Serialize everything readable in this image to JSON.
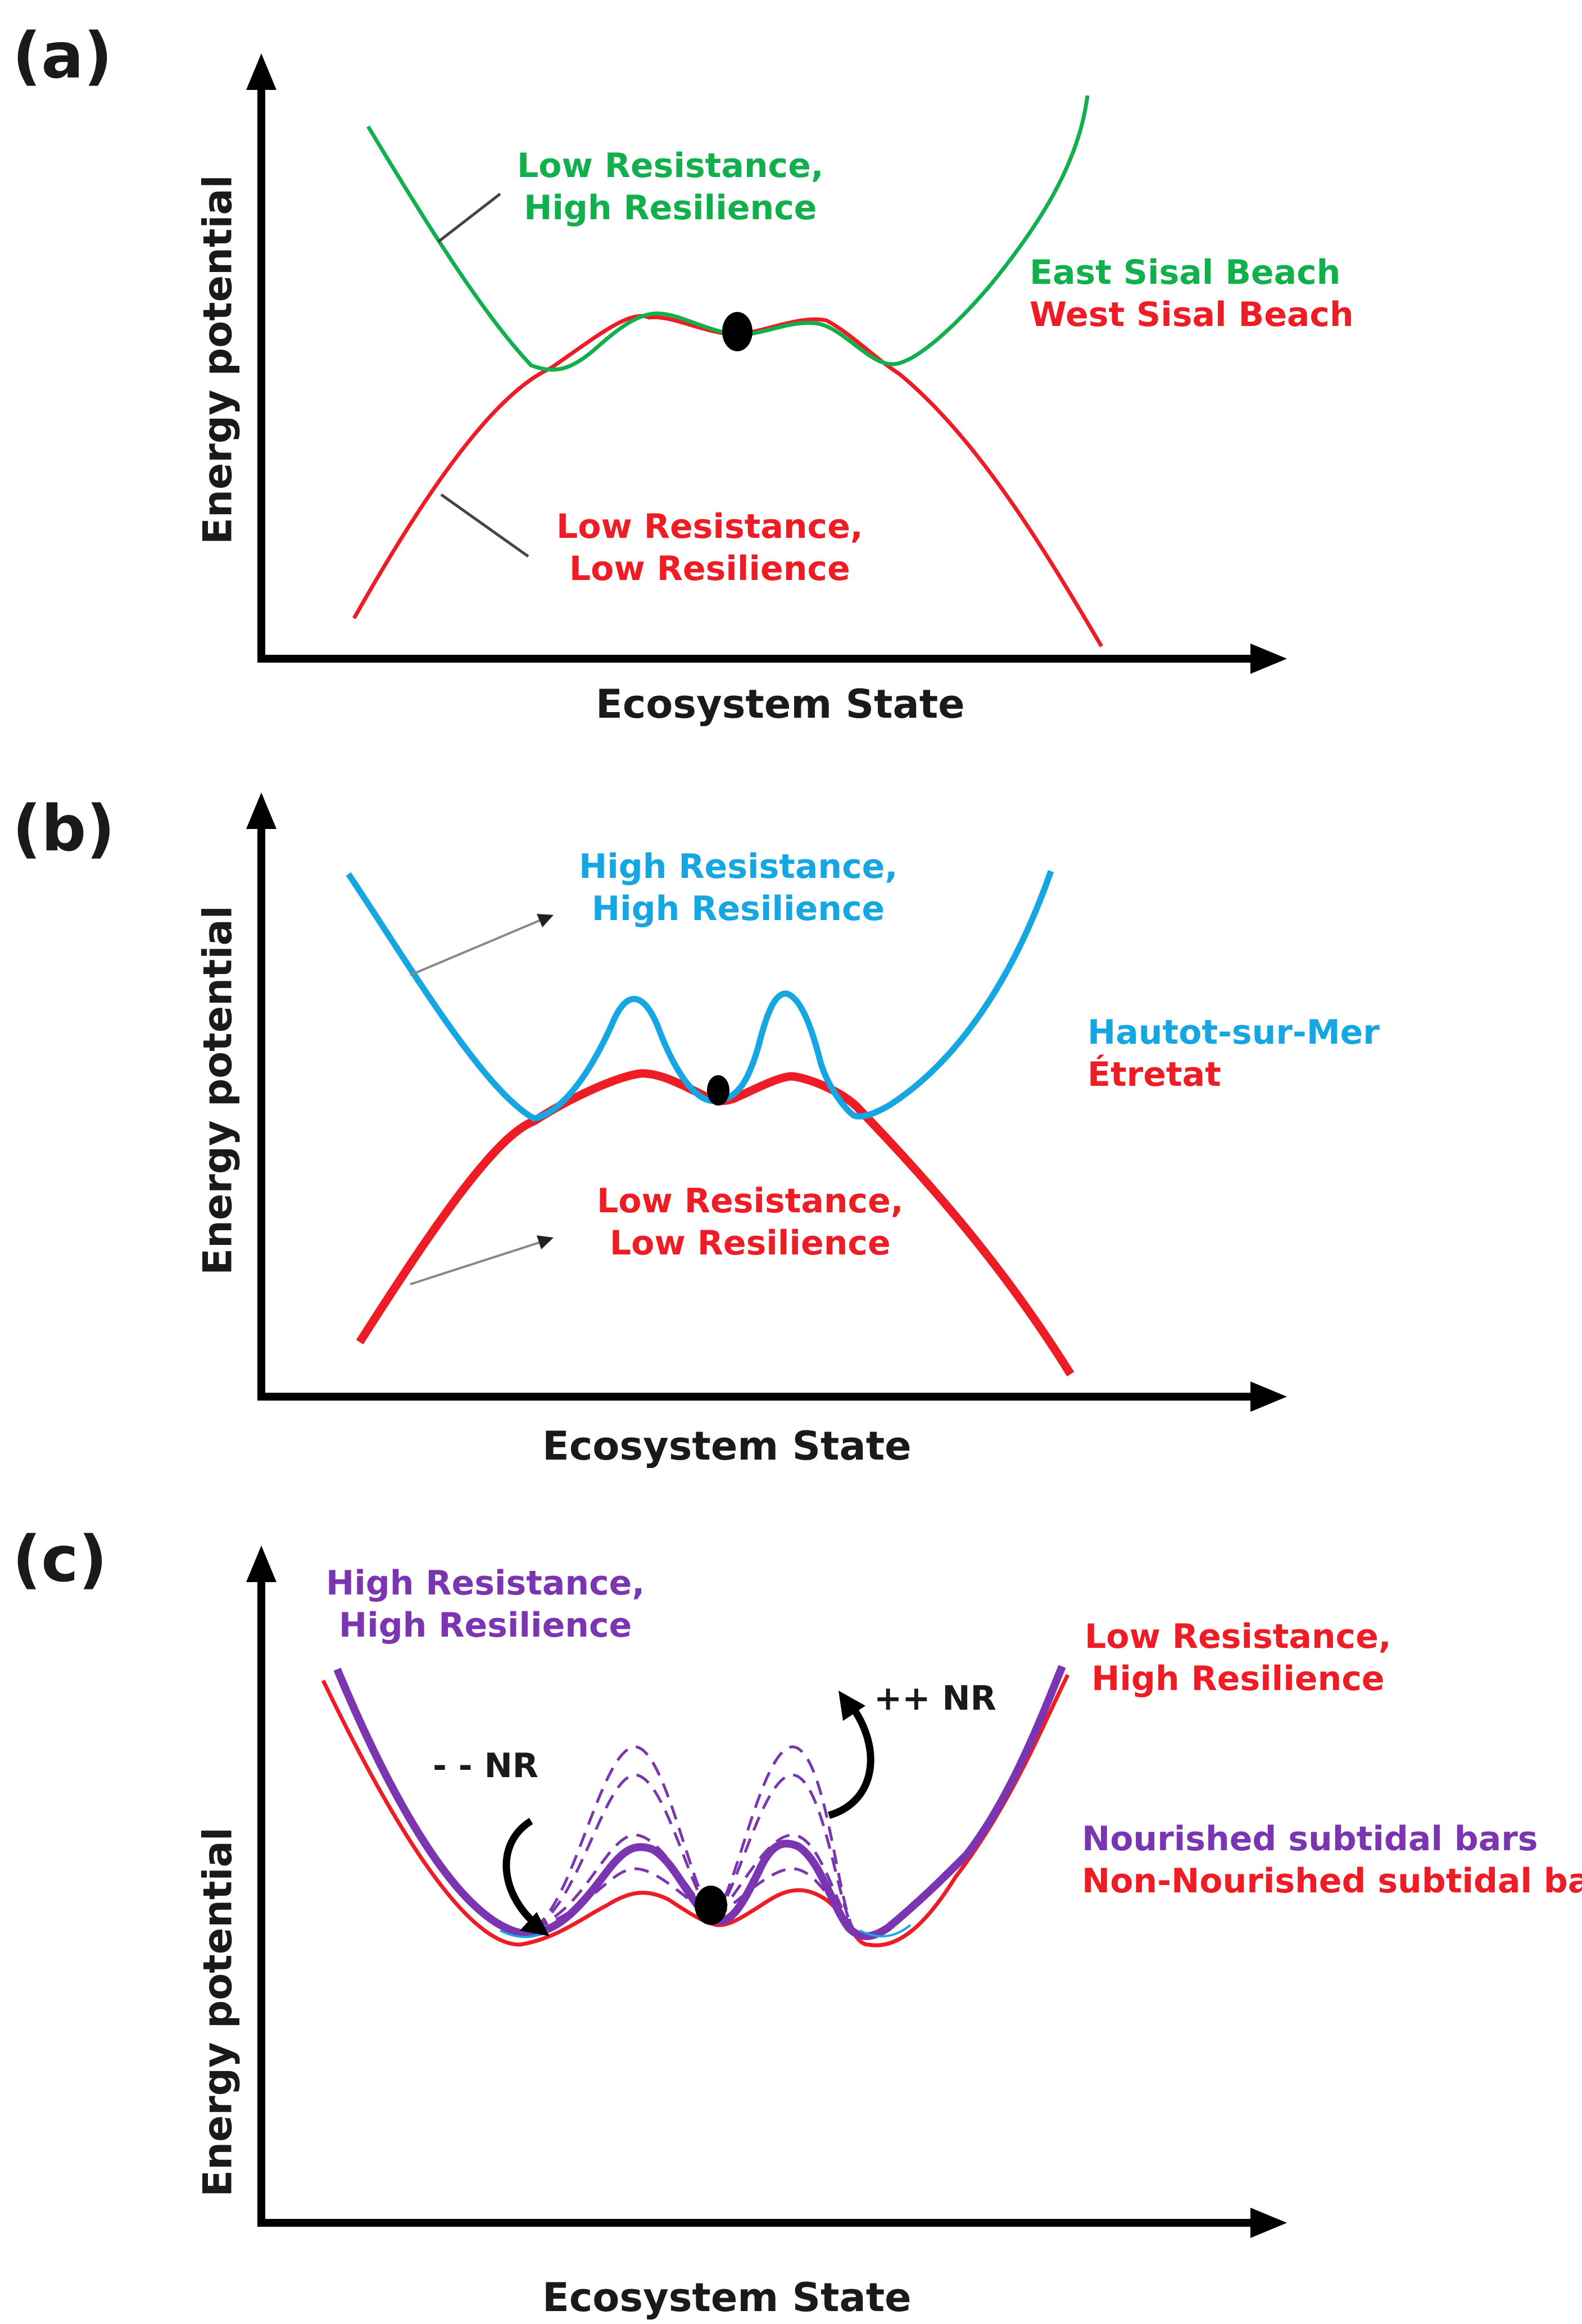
{
  "colors": {
    "green": "#12b04c",
    "red": "#ee1c24",
    "blue": "#16a7e2",
    "purple": "#7b35b0",
    "black": "#000000"
  },
  "panel_a": {
    "label": "(a)",
    "ylabel": "Energy potential",
    "xlabel": "Ecosystem State",
    "top_note": [
      "Low Resistance,",
      "High Resilience"
    ],
    "bottom_note": [
      "Low Resistance,",
      "Low Resilience"
    ],
    "legend": [
      "East Sisal Beach",
      "West Sisal Beach"
    ]
  },
  "panel_b": {
    "label": "(b)",
    "ylabel": "Energy potential",
    "xlabel": "Ecosystem State",
    "top_note": [
      "High Resistance,",
      "High Resilience"
    ],
    "bottom_note": [
      "Low Resistance,",
      "Low Resilience"
    ],
    "legend": [
      "Hautot-sur-Mer",
      "Étretat"
    ]
  },
  "panel_c": {
    "label": "(c)",
    "ylabel": "Energy potential",
    "xlabel": "Ecosystem State",
    "top_left_note": [
      "High Resistance,",
      "High Resilience"
    ],
    "top_right_note": [
      "Low Resistance,",
      "High Resilience"
    ],
    "minus_label": "- - NR",
    "plus_label": "++ NR",
    "legend": [
      "Nourished subtidal bars",
      "Non-Nourished subtidal bars"
    ]
  }
}
